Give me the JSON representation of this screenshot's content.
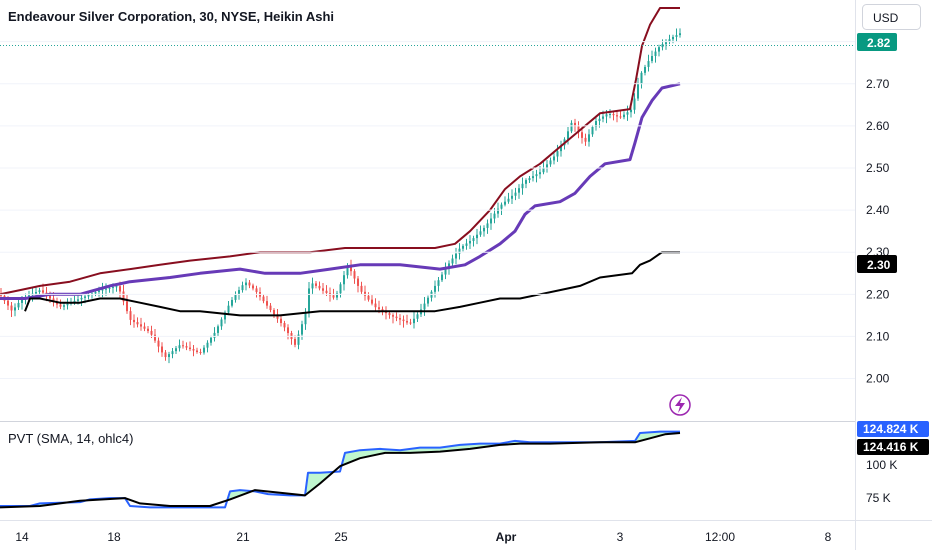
{
  "header": {
    "title": "Endeavour Silver Corporation, 30, NYSE, Heikin Ashi",
    "currency_button": "USD"
  },
  "colors": {
    "up": "#26a69a",
    "down": "#ef5350",
    "upper_band": "#880e1f",
    "lower_band": "#673ab7",
    "basis": "#000000",
    "pvt_line": "#2962ff",
    "pvt_sma": "#000000",
    "pvt_fill": "#b9f6ca",
    "last_price_badge": "#089981",
    "price_line": "#26a69a"
  },
  "icons": {
    "flash": "lightning-icon"
  },
  "chart_data": [
    {
      "type": "candlestick",
      "title": "Endeavour Silver Corporation, 30, NYSE, Heikin Ashi",
      "ylim": [
        1.93,
        2.88
      ],
      "y_ticks": [
        "2.00",
        "2.10",
        "2.20",
        "2.30",
        "2.40",
        "2.50",
        "2.60",
        "2.70",
        "2.80"
      ],
      "x_ticks": [
        "14",
        "18",
        "21",
        "25",
        "Apr",
        "3",
        "12:00",
        "8"
      ],
      "last_price": "2.82",
      "badge_value": "2.30",
      "price_segments": [
        [
          0,
          2.2
        ],
        [
          12,
          2.16
        ],
        [
          22,
          2.19
        ],
        [
          40,
          2.21
        ],
        [
          60,
          2.17
        ],
        [
          80,
          2.19
        ],
        [
          100,
          2.21
        ],
        [
          118,
          2.22
        ],
        [
          130,
          2.14
        ],
        [
          150,
          2.11
        ],
        [
          165,
          2.05
        ],
        [
          180,
          2.08
        ],
        [
          200,
          2.06
        ],
        [
          215,
          2.11
        ],
        [
          230,
          2.18
        ],
        [
          245,
          2.23
        ],
        [
          255,
          2.21
        ],
        [
          268,
          2.17
        ],
        [
          285,
          2.12
        ],
        [
          295,
          2.08
        ],
        [
          305,
          2.15
        ],
        [
          310,
          2.23
        ],
        [
          322,
          2.21
        ],
        [
          335,
          2.19
        ],
        [
          348,
          2.27
        ],
        [
          360,
          2.21
        ],
        [
          375,
          2.17
        ],
        [
          390,
          2.15
        ],
        [
          410,
          2.13
        ],
        [
          420,
          2.16
        ],
        [
          435,
          2.22
        ],
        [
          448,
          2.27
        ],
        [
          460,
          2.31
        ],
        [
          472,
          2.33
        ],
        [
          485,
          2.36
        ],
        [
          500,
          2.41
        ],
        [
          515,
          2.44
        ],
        [
          525,
          2.47
        ],
        [
          540,
          2.49
        ],
        [
          555,
          2.53
        ],
        [
          565,
          2.57
        ],
        [
          572,
          2.61
        ],
        [
          585,
          2.56
        ],
        [
          595,
          2.61
        ],
        [
          608,
          2.63
        ],
        [
          620,
          2.62
        ],
        [
          632,
          2.64
        ],
        [
          640,
          2.72
        ],
        [
          650,
          2.76
        ],
        [
          660,
          2.79
        ],
        [
          672,
          2.81
        ],
        [
          680,
          2.82
        ]
      ],
      "upper_band": [
        [
          0,
          2.2
        ],
        [
          20,
          2.21
        ],
        [
          40,
          2.22
        ],
        [
          70,
          2.23
        ],
        [
          100,
          2.25
        ],
        [
          130,
          2.26
        ],
        [
          160,
          2.27
        ],
        [
          190,
          2.28
        ],
        [
          230,
          2.29
        ],
        [
          260,
          2.3
        ],
        [
          310,
          2.3
        ],
        [
          345,
          2.31
        ],
        [
          400,
          2.31
        ],
        [
          435,
          2.31
        ],
        [
          455,
          2.32
        ],
        [
          470,
          2.35
        ],
        [
          490,
          2.4
        ],
        [
          505,
          2.45
        ],
        [
          520,
          2.48
        ],
        [
          540,
          2.51
        ],
        [
          560,
          2.55
        ],
        [
          580,
          2.59
        ],
        [
          600,
          2.63
        ],
        [
          630,
          2.64
        ],
        [
          636,
          2.71
        ],
        [
          642,
          2.79
        ],
        [
          650,
          2.84
        ],
        [
          660,
          2.88
        ],
        [
          680,
          2.88
        ]
      ],
      "lower_band": [
        [
          0,
          2.19
        ],
        [
          25,
          2.19
        ],
        [
          50,
          2.2
        ],
        [
          80,
          2.2
        ],
        [
          110,
          2.22
        ],
        [
          130,
          2.23
        ],
        [
          170,
          2.24
        ],
        [
          200,
          2.25
        ],
        [
          240,
          2.26
        ],
        [
          265,
          2.25
        ],
        [
          300,
          2.25
        ],
        [
          330,
          2.26
        ],
        [
          360,
          2.27
        ],
        [
          400,
          2.27
        ],
        [
          440,
          2.26
        ],
        [
          465,
          2.27
        ],
        [
          480,
          2.29
        ],
        [
          500,
          2.32
        ],
        [
          515,
          2.35
        ],
        [
          525,
          2.39
        ],
        [
          535,
          2.41
        ],
        [
          560,
          2.42
        ],
        [
          575,
          2.44
        ],
        [
          590,
          2.48
        ],
        [
          605,
          2.51
        ],
        [
          630,
          2.52
        ],
        [
          635,
          2.56
        ],
        [
          642,
          2.62
        ],
        [
          652,
          2.66
        ],
        [
          662,
          2.69
        ],
        [
          680,
          2.7
        ]
      ],
      "basis": [
        [
          25,
          2.16
        ],
        [
          30,
          2.19
        ],
        [
          40,
          2.19
        ],
        [
          60,
          2.18
        ],
        [
          80,
          2.18
        ],
        [
          100,
          2.19
        ],
        [
          120,
          2.19
        ],
        [
          140,
          2.18
        ],
        [
          160,
          2.17
        ],
        [
          180,
          2.16
        ],
        [
          200,
          2.16
        ],
        [
          240,
          2.15
        ],
        [
          280,
          2.15
        ],
        [
          320,
          2.16
        ],
        [
          360,
          2.16
        ],
        [
          400,
          2.16
        ],
        [
          435,
          2.16
        ],
        [
          460,
          2.17
        ],
        [
          480,
          2.18
        ],
        [
          500,
          2.19
        ],
        [
          520,
          2.19
        ],
        [
          540,
          2.2
        ],
        [
          560,
          2.21
        ],
        [
          580,
          2.22
        ],
        [
          600,
          2.24
        ],
        [
          632,
          2.25
        ],
        [
          640,
          2.27
        ],
        [
          650,
          2.28
        ],
        [
          662,
          2.3
        ],
        [
          680,
          2.3
        ]
      ]
    },
    {
      "type": "line",
      "title": "PVT (SMA, 14, ohlc4)",
      "ylim": [
        60,
        130
      ],
      "y_ticks": [
        "75 K",
        "100 K"
      ],
      "value_pvt": "124.824 K",
      "value_sma": "124.416 K",
      "series": [
        {
          "values": [
            [
              0,
              69
            ],
            [
              30,
              69
            ],
            [
              40,
              71
            ],
            [
              80,
              72
            ],
            [
              90,
              74
            ],
            [
              110,
              75
            ],
            [
              125,
              75
            ],
            [
              130,
              69
            ],
            [
              150,
              68
            ],
            [
              185,
              68
            ],
            [
              225,
              68
            ],
            [
              230,
              80
            ],
            [
              240,
              81
            ],
            [
              255,
              80
            ],
            [
              268,
              78
            ],
            [
              290,
              77
            ],
            [
              305,
              77
            ],
            [
              308,
              94
            ],
            [
              320,
              94
            ],
            [
              340,
              95
            ],
            [
              345,
              109
            ],
            [
              360,
              111
            ],
            [
              380,
              112
            ],
            [
              400,
              111
            ],
            [
              420,
              113
            ],
            [
              440,
              113
            ],
            [
              460,
              115
            ],
            [
              480,
              116
            ],
            [
              500,
              116
            ],
            [
              515,
              118
            ],
            [
              530,
              117
            ],
            [
              550,
              117
            ],
            [
              570,
              117
            ],
            [
              600,
              117
            ],
            [
              635,
              118
            ],
            [
              640,
              124
            ],
            [
              660,
              125
            ],
            [
              680,
              125
            ]
          ]
        },
        {
          "values": [
            [
              0,
              68
            ],
            [
              40,
              69
            ],
            [
              80,
              73
            ],
            [
              125,
              75
            ],
            [
              140,
              71
            ],
            [
              170,
              69
            ],
            [
              210,
              69
            ],
            [
              230,
              74
            ],
            [
              255,
              81
            ],
            [
              280,
              79
            ],
            [
              305,
              77
            ],
            [
              320,
              86
            ],
            [
              340,
              99
            ],
            [
              360,
              105
            ],
            [
              385,
              109
            ],
            [
              410,
              109
            ],
            [
              440,
              110
            ],
            [
              470,
              112
            ],
            [
              500,
              115
            ],
            [
              520,
              116
            ],
            [
              550,
              116
            ],
            [
              600,
              117
            ],
            [
              635,
              117
            ],
            [
              650,
              120
            ],
            [
              665,
              123
            ],
            [
              680,
              124
            ]
          ]
        }
      ]
    }
  ]
}
